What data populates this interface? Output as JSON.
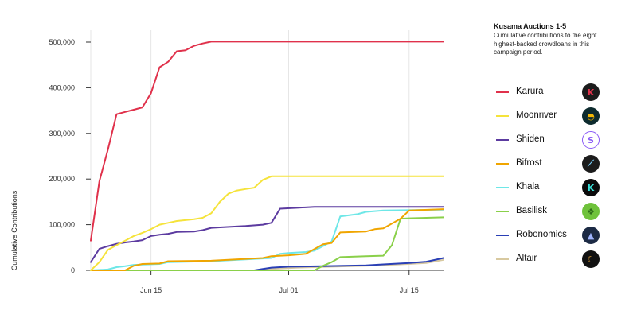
{
  "panel": {
    "title": "Kusama Auctions 1-5",
    "subtitle": "Cumulative contributions to the eight highest-backed crowdloans in this campaign period."
  },
  "legend": [
    {
      "label": "Karura",
      "color": "#e0314b",
      "icon": "karura-logo-icon",
      "glyph": "K",
      "bg": "#1c1c1c",
      "fg": "#e0314b"
    },
    {
      "label": "Moonriver",
      "color": "#f5e33b",
      "icon": "moonriver-logo-icon",
      "glyph": "◓",
      "bg": "#0d2b2e",
      "fg": "#f2b705"
    },
    {
      "label": "Shiden",
      "color": "#5c3ba0",
      "icon": "shiden-logo-icon",
      "glyph": "S",
      "bg": "#ffffff",
      "fg": "#8b5cf6"
    },
    {
      "label": "Bifrost",
      "color": "#f0a500",
      "icon": "bifrost-logo-icon",
      "glyph": "⟋",
      "bg": "#1c1c1c",
      "fg": "#7ad3ff"
    },
    {
      "label": "Khala",
      "color": "#6ee7e7",
      "icon": "khala-logo-icon",
      "glyph": "K",
      "bg": "#0b0b0b",
      "fg": "#37e0d8"
    },
    {
      "label": "Basilisk",
      "color": "#8ad04a",
      "icon": "basilisk-logo-icon",
      "glyph": "❖",
      "bg": "#6fc23b",
      "fg": "#2e6d18"
    },
    {
      "label": "Robonomics",
      "color": "#2a3fb5",
      "icon": "robonomics-logo-icon",
      "glyph": "▲",
      "bg": "#1c2a44",
      "fg": "#9fb4ff"
    },
    {
      "label": "Altair",
      "color": "#d8c9a0",
      "icon": "altair-logo-icon",
      "glyph": "☾",
      "bg": "#111111",
      "fg": "#e4a23a"
    }
  ],
  "chart_data": {
    "type": "line",
    "xlabel": "",
    "ylabel": "Cumulative Contributions",
    "x_range": [
      "2021-06-08",
      "2021-07-19"
    ],
    "ylim": [
      0,
      500000
    ],
    "yticks": [
      0,
      100000,
      200000,
      300000,
      400000,
      500000
    ],
    "ytick_labels": [
      "0",
      "100,000",
      "200,000",
      "300,000",
      "400,000",
      "500,000"
    ],
    "xticks": [
      "2021-06-15",
      "2021-07-01",
      "2021-07-15"
    ],
    "xtick_labels": [
      "Jun 15",
      "Jul 01",
      "Jul 15"
    ],
    "grid": "vertical",
    "legend_position": "right",
    "series": [
      {
        "name": "Karura",
        "color": "#e0314b",
        "points": [
          [
            "2021-06-08",
            65000
          ],
          [
            "2021-06-09",
            195000
          ],
          [
            "2021-06-10",
            265000
          ],
          [
            "2021-06-11",
            342000
          ],
          [
            "2021-06-12",
            347000
          ],
          [
            "2021-06-13",
            352000
          ],
          [
            "2021-06-14",
            357000
          ],
          [
            "2021-06-15",
            388000
          ],
          [
            "2021-06-16",
            445000
          ],
          [
            "2021-06-17",
            457000
          ],
          [
            "2021-06-18",
            480000
          ],
          [
            "2021-06-19",
            482000
          ],
          [
            "2021-06-20",
            492000
          ],
          [
            "2021-06-21",
            497000
          ],
          [
            "2021-06-22",
            501000
          ],
          [
            "2021-07-19",
            501000
          ]
        ]
      },
      {
        "name": "Moonriver",
        "color": "#f5e33b",
        "points": [
          [
            "2021-06-08",
            0
          ],
          [
            "2021-06-09",
            18000
          ],
          [
            "2021-06-10",
            45000
          ],
          [
            "2021-06-11",
            55000
          ],
          [
            "2021-06-12",
            65000
          ],
          [
            "2021-06-13",
            75000
          ],
          [
            "2021-06-14",
            82000
          ],
          [
            "2021-06-15",
            90000
          ],
          [
            "2021-06-16",
            100000
          ],
          [
            "2021-06-17",
            104000
          ],
          [
            "2021-06-18",
            108000
          ],
          [
            "2021-06-19",
            110000
          ],
          [
            "2021-06-20",
            112000
          ],
          [
            "2021-06-21",
            115000
          ],
          [
            "2021-06-22",
            125000
          ],
          [
            "2021-06-23",
            150000
          ],
          [
            "2021-06-24",
            168000
          ],
          [
            "2021-06-25",
            175000
          ],
          [
            "2021-06-26",
            178000
          ],
          [
            "2021-06-27",
            181000
          ],
          [
            "2021-06-28",
            198000
          ],
          [
            "2021-06-29",
            206000
          ],
          [
            "2021-07-19",
            206000
          ]
        ]
      },
      {
        "name": "Shiden",
        "color": "#5c3ba0",
        "points": [
          [
            "2021-06-08",
            18000
          ],
          [
            "2021-06-09",
            47000
          ],
          [
            "2021-06-10",
            53000
          ],
          [
            "2021-06-11",
            58000
          ],
          [
            "2021-06-12",
            61000
          ],
          [
            "2021-06-13",
            63000
          ],
          [
            "2021-06-14",
            66000
          ],
          [
            "2021-06-15",
            75000
          ],
          [
            "2021-06-16",
            78000
          ],
          [
            "2021-06-17",
            80000
          ],
          [
            "2021-06-18",
            84000
          ],
          [
            "2021-06-20",
            85000
          ],
          [
            "2021-06-21",
            88000
          ],
          [
            "2021-06-22",
            93000
          ],
          [
            "2021-06-23",
            94000
          ],
          [
            "2021-06-26",
            97000
          ],
          [
            "2021-06-28",
            100000
          ],
          [
            "2021-06-29",
            104000
          ],
          [
            "2021-06-30",
            135000
          ],
          [
            "2021-07-02",
            137000
          ],
          [
            "2021-07-04",
            139000
          ],
          [
            "2021-07-19",
            139000
          ]
        ]
      },
      {
        "name": "Bifrost",
        "color": "#f0a500",
        "points": [
          [
            "2021-06-08",
            0
          ],
          [
            "2021-06-12",
            0
          ],
          [
            "2021-06-13",
            10000
          ],
          [
            "2021-06-14",
            14000
          ],
          [
            "2021-06-16",
            15000
          ],
          [
            "2021-06-17",
            20000
          ],
          [
            "2021-06-22",
            21000
          ],
          [
            "2021-06-26",
            25000
          ],
          [
            "2021-06-28",
            27000
          ],
          [
            "2021-06-29",
            31000
          ],
          [
            "2021-07-01",
            33000
          ],
          [
            "2021-07-03",
            36000
          ],
          [
            "2021-07-05",
            57000
          ],
          [
            "2021-07-06",
            60000
          ],
          [
            "2021-07-07",
            83000
          ],
          [
            "2021-07-10",
            85000
          ],
          [
            "2021-07-11",
            90000
          ],
          [
            "2021-07-12",
            92000
          ],
          [
            "2021-07-14",
            113000
          ],
          [
            "2021-07-15",
            131000
          ],
          [
            "2021-07-19",
            134000
          ]
        ]
      },
      {
        "name": "Khala",
        "color": "#6ee7e7",
        "points": [
          [
            "2021-06-08",
            0
          ],
          [
            "2021-06-10",
            2000
          ],
          [
            "2021-06-11",
            7000
          ],
          [
            "2021-06-12",
            9000
          ],
          [
            "2021-06-13",
            12000
          ],
          [
            "2021-06-16",
            14000
          ],
          [
            "2021-06-17",
            18000
          ],
          [
            "2021-06-22",
            20000
          ],
          [
            "2021-06-26",
            24000
          ],
          [
            "2021-06-29",
            27000
          ],
          [
            "2021-06-30",
            36000
          ],
          [
            "2021-07-01",
            38000
          ],
          [
            "2021-07-03",
            40000
          ],
          [
            "2021-07-04",
            43000
          ],
          [
            "2021-07-06",
            63000
          ],
          [
            "2021-07-07",
            118000
          ],
          [
            "2021-07-09",
            123000
          ],
          [
            "2021-07-10",
            128000
          ],
          [
            "2021-07-12",
            131000
          ],
          [
            "2021-07-19",
            133000
          ]
        ]
      },
      {
        "name": "Basilisk",
        "color": "#8ad04a",
        "points": [
          [
            "2021-06-08",
            0
          ],
          [
            "2021-07-04",
            0
          ],
          [
            "2021-07-05",
            10000
          ],
          [
            "2021-07-06",
            18000
          ],
          [
            "2021-07-07",
            29000
          ],
          [
            "2021-07-10",
            31000
          ],
          [
            "2021-07-12",
            32000
          ],
          [
            "2021-07-13",
            55000
          ],
          [
            "2021-07-14",
            113000
          ],
          [
            "2021-07-15",
            114000
          ],
          [
            "2021-07-17",
            115000
          ],
          [
            "2021-07-19",
            116000
          ]
        ]
      },
      {
        "name": "Robonomics",
        "color": "#2a3fb5",
        "points": [
          [
            "2021-06-08",
            0
          ],
          [
            "2021-06-27",
            0
          ],
          [
            "2021-06-28",
            3000
          ],
          [
            "2021-06-29",
            6000
          ],
          [
            "2021-07-01",
            8000
          ],
          [
            "2021-07-05",
            9000
          ],
          [
            "2021-07-10",
            11000
          ],
          [
            "2021-07-12",
            13000
          ],
          [
            "2021-07-15",
            16000
          ],
          [
            "2021-07-17",
            19000
          ],
          [
            "2021-07-19",
            27000
          ]
        ]
      },
      {
        "name": "Altair",
        "color": "#d8c9a0",
        "points": [
          [
            "2021-06-08",
            0
          ],
          [
            "2021-06-28",
            0
          ],
          [
            "2021-06-29",
            3000
          ],
          [
            "2021-07-02",
            6000
          ],
          [
            "2021-07-06",
            8000
          ],
          [
            "2021-07-10",
            10000
          ],
          [
            "2021-07-14",
            13000
          ],
          [
            "2021-07-17",
            16000
          ],
          [
            "2021-07-19",
            23000
          ]
        ]
      }
    ]
  }
}
